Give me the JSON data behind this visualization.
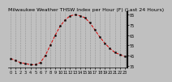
{
  "title": "Milwaukee Weather THSW Index per Hour (F) (Last 24 Hours)",
  "hours": [
    0,
    1,
    2,
    3,
    4,
    5,
    6,
    7,
    8,
    9,
    10,
    11,
    12,
    13,
    14,
    15,
    16,
    17,
    18,
    19,
    20,
    21,
    22,
    23
  ],
  "values": [
    42,
    40,
    38,
    37,
    36,
    36,
    38,
    45,
    55,
    65,
    74,
    80,
    84,
    85,
    84,
    82,
    77,
    70,
    63,
    57,
    52,
    48,
    46,
    44
  ],
  "line_color": "#dd0000",
  "marker_color": "#000000",
  "bg_color": "#c0c0c0",
  "plot_bg_color": "#c0c0c0",
  "grid_color": "#888888",
  "ylim": [
    33,
    88
  ],
  "yticks": [
    35,
    45,
    55,
    65,
    75,
    85
  ],
  "ytick_labels": [
    "35",
    "45",
    "55",
    "65",
    "75",
    "85"
  ],
  "title_fontsize": 4.5,
  "tick_fontsize": 3.5,
  "right_border_color": "#000000"
}
